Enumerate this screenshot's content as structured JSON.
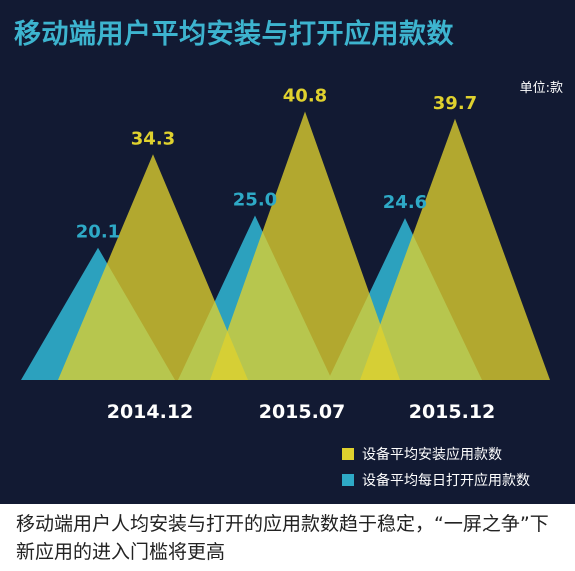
{
  "title": "移动端用户平均安装与打开应用款数",
  "unit_label": "单位:款",
  "chart_data": {
    "type": "area",
    "categories": [
      "2014.12",
      "2015.07",
      "2015.12"
    ],
    "series": [
      {
        "name": "设备平均安装应用款数",
        "values": [
          34.3,
          40.8,
          39.7
        ],
        "color": "#dfd12e"
      },
      {
        "name": "设备平均每日打开应用款数",
        "values": [
          20.1,
          25.0,
          24.6
        ],
        "color": "#2ea9c6"
      }
    ],
    "ylim": [
      0,
      42
    ],
    "grid": false,
    "legend": "bottom-right",
    "data_labels": true
  },
  "footer_text": "移动端用户人均安装与打开的应用款数趋于稳定，“一屏之争”下新应用的进入门槛将更高",
  "colors": {
    "background": "#121a33",
    "title": "#3db4cf",
    "install": "#dfd12e",
    "open": "#2ea9c6"
  }
}
